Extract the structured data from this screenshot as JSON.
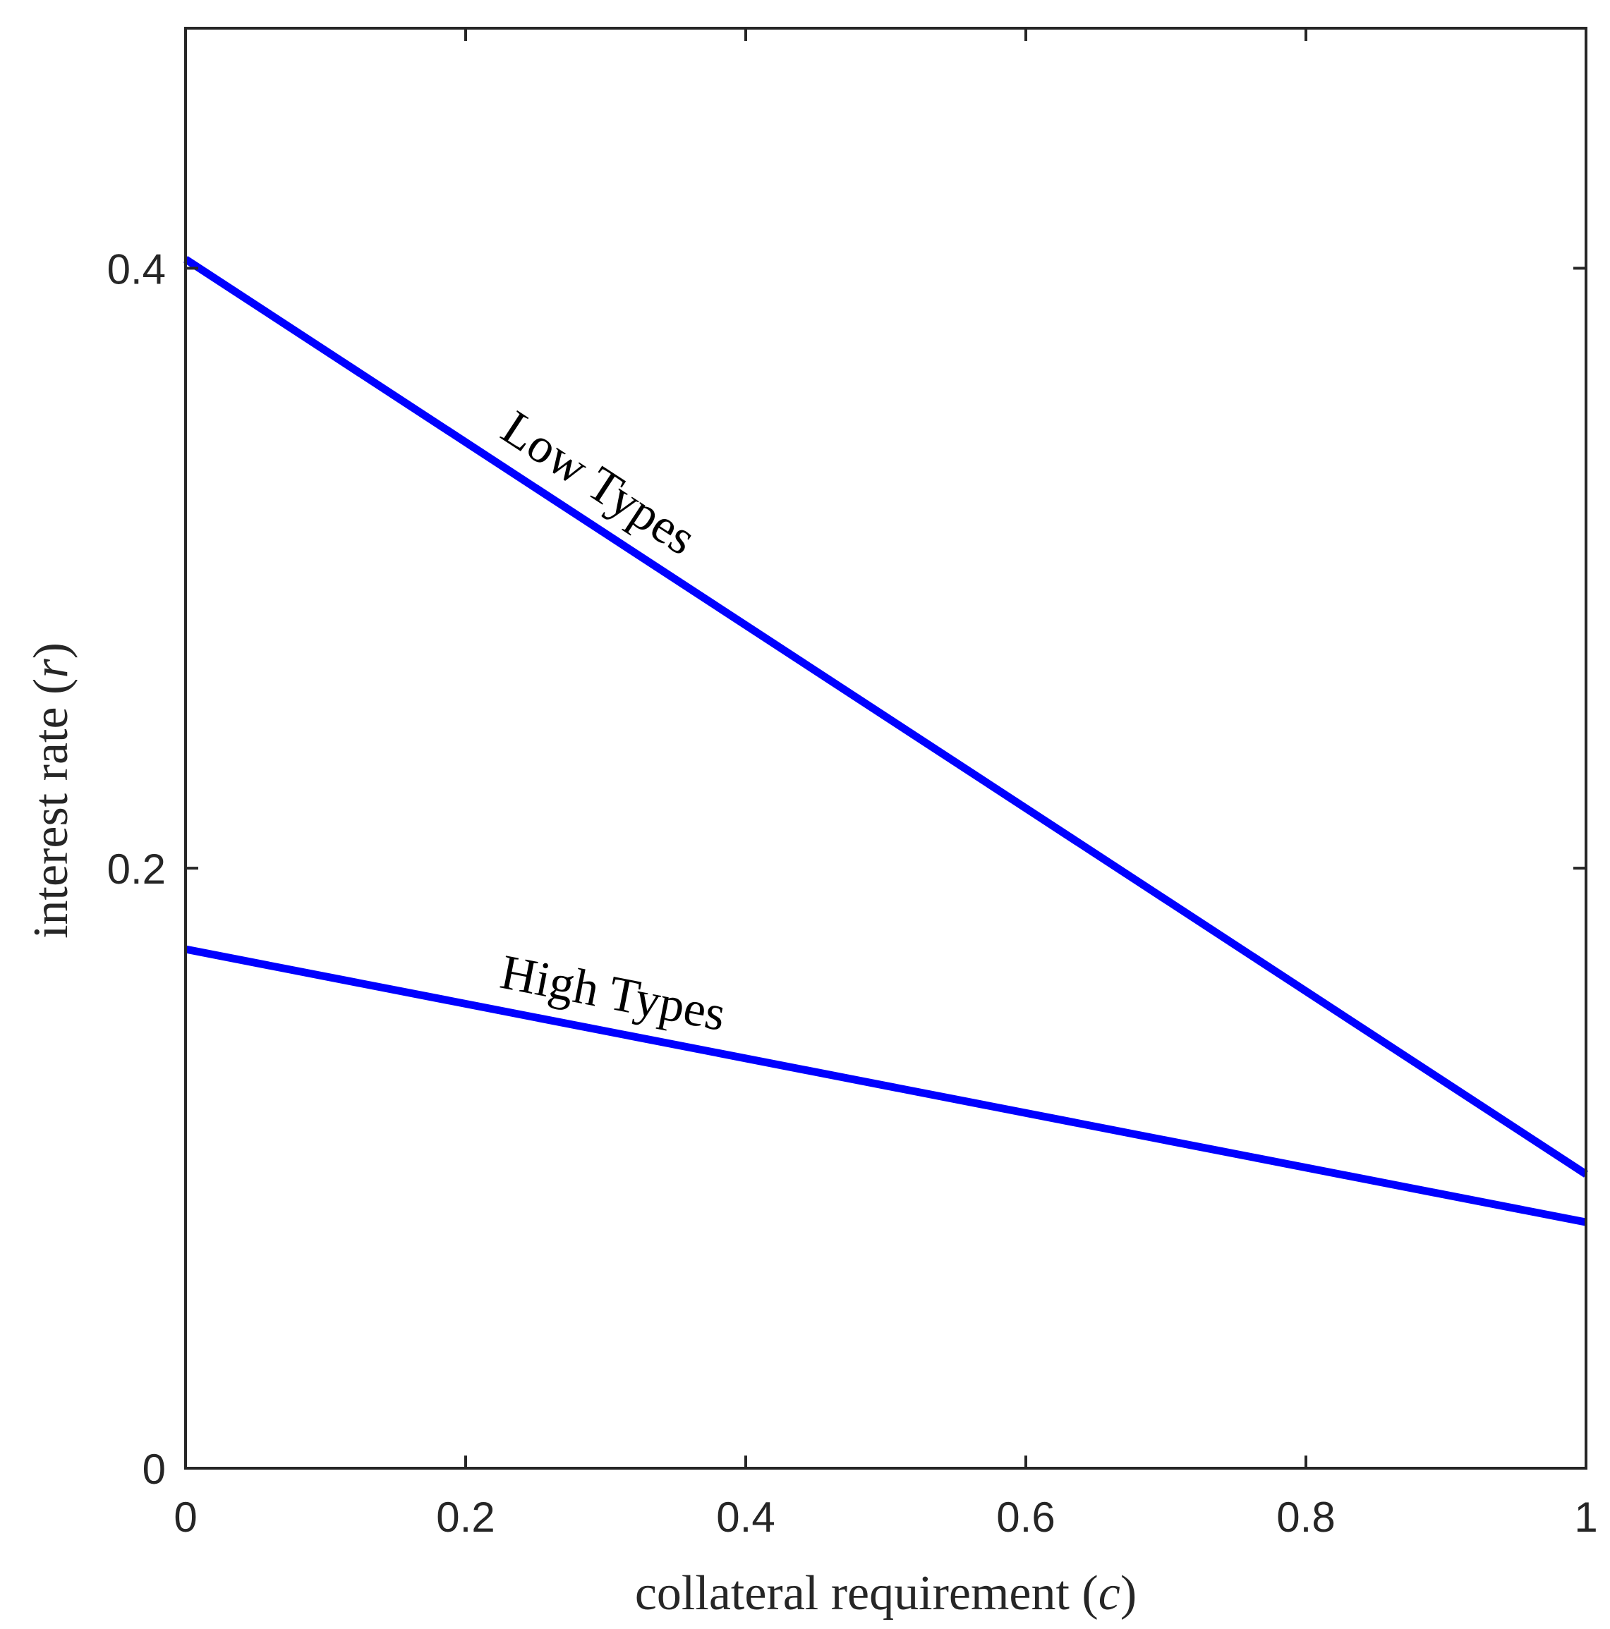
{
  "chart_data": {
    "type": "line",
    "title": "",
    "xlabel": "collateral requirement (c)",
    "xlabel_parts": {
      "text": "collateral requirement ",
      "open": "(",
      "var": "c",
      "close": ")"
    },
    "ylabel": "interest rate (r)",
    "ylabel_parts": {
      "text": "interest rate ",
      "open": "(",
      "var": "r",
      "close": ")"
    },
    "xlim": [
      0,
      1
    ],
    "ylim": [
      0,
      0.48
    ],
    "xticks": [
      0,
      0.2,
      0.4,
      0.6,
      0.8,
      1
    ],
    "xtick_labels": [
      "0",
      "0.2",
      "0.4",
      "0.6",
      "0.8",
      "1"
    ],
    "yticks": [
      0,
      0.2,
      0.4
    ],
    "ytick_labels": [
      "0",
      "0.2",
      "0.4"
    ],
    "grid": false,
    "line_color": "#0000ff",
    "axis_color": "#262626",
    "series": [
      {
        "name": "Low Types",
        "x": [
          0,
          1
        ],
        "y": [
          0.403,
          0.098
        ]
      },
      {
        "name": "High Types",
        "x": [
          0,
          1
        ],
        "y": [
          0.173,
          0.082
        ]
      }
    ],
    "annotations": [
      {
        "text": "Low Types",
        "series": "Low Types",
        "at_x": 0.28
      },
      {
        "text": "High Types",
        "series": "High Types",
        "at_x": 0.3
      }
    ]
  }
}
